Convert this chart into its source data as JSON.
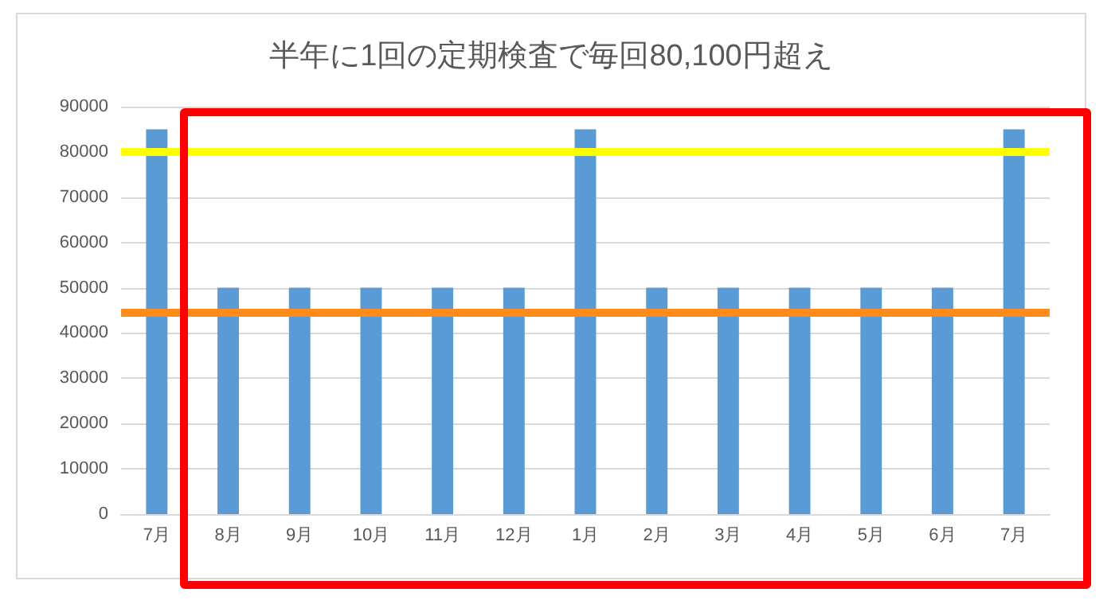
{
  "chart_data": {
    "type": "bar",
    "title": "半年に1回の定期検査で毎回80,100円超え",
    "categories": [
      "7月",
      "8月",
      "9月",
      "10月",
      "11月",
      "12月",
      "1月",
      "2月",
      "3月",
      "4月",
      "5月",
      "6月",
      "7月"
    ],
    "values": [
      85000,
      50000,
      50000,
      50000,
      50000,
      50000,
      85000,
      50000,
      50000,
      50000,
      50000,
      50000,
      85000
    ],
    "color": "#5b9bd5",
    "ylim": [
      0,
      90000
    ],
    "yticks": [
      0,
      10000,
      20000,
      30000,
      40000,
      50000,
      60000,
      70000,
      80000,
      90000
    ],
    "grid": "y",
    "ref_lines": [
      {
        "axis": "y",
        "value": 80100,
        "color": "#ffff00"
      },
      {
        "axis": "y",
        "value": 44400,
        "color": "#ff8c1a"
      }
    ]
  }
}
